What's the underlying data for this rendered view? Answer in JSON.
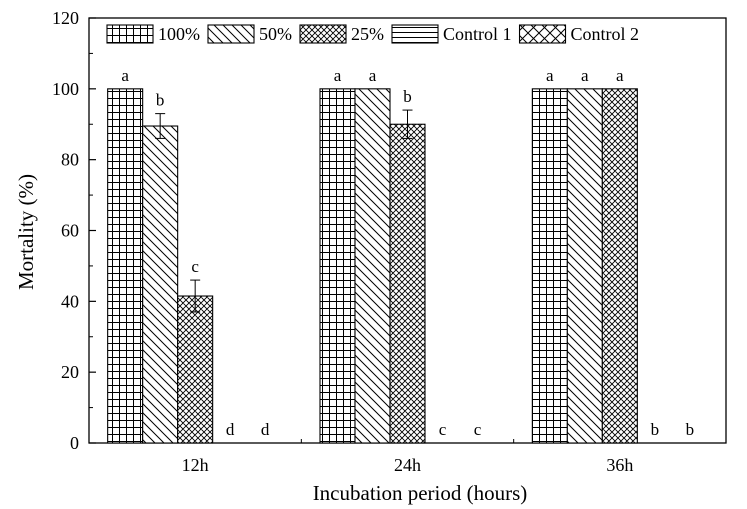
{
  "chart_data": {
    "type": "bar",
    "title": "",
    "xlabel": "Incubation period (hours)",
    "ylabel": "Mortality (%)",
    "ylim": [
      0,
      120
    ],
    "yticks": [
      0,
      20,
      40,
      60,
      80,
      100,
      120
    ],
    "categories": [
      "12h",
      "24h",
      "36h"
    ],
    "legend_position": "top",
    "grid": false,
    "series": [
      {
        "name": "100%",
        "pattern": "grid",
        "values": [
          100,
          100,
          100
        ],
        "errors": [
          0,
          0,
          0
        ],
        "letters": [
          "a",
          "a",
          "a"
        ]
      },
      {
        "name": "50%",
        "pattern": "diagonal",
        "values": [
          89.5,
          100,
          100
        ],
        "errors": [
          3.5,
          0,
          0
        ],
        "letters": [
          "b",
          "a",
          "a"
        ]
      },
      {
        "name": "25%",
        "pattern": "crosshatch",
        "values": [
          41.5,
          90,
          100
        ],
        "errors": [
          4.5,
          4,
          0
        ],
        "letters": [
          "c",
          "b",
          "a"
        ]
      },
      {
        "name": "Control 1",
        "pattern": "horizontal",
        "values": [
          0,
          0,
          0
        ],
        "errors": [
          0,
          0,
          0
        ],
        "letters": [
          "d",
          "c",
          "b"
        ]
      },
      {
        "name": "Control 2",
        "pattern": "coarse-crosshatch",
        "values": [
          0,
          0,
          0
        ],
        "errors": [
          0,
          0,
          0
        ],
        "letters": [
          "d",
          "c",
          "b"
        ]
      }
    ]
  }
}
